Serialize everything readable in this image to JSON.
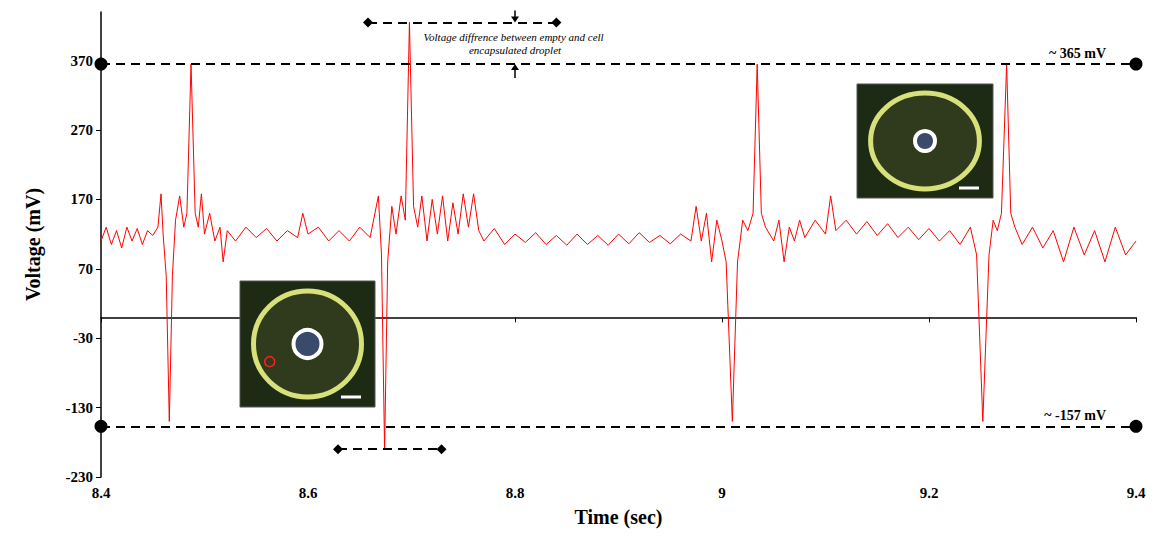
{
  "chart_data": {
    "type": "line",
    "x_label": "Time (sec)",
    "y_label": "Voltage (mV)",
    "color": "#ff0000",
    "grid": false,
    "xlim": [
      8.4,
      9.4
    ],
    "xticks": [
      8.4,
      8.6,
      8.8,
      9,
      9.2,
      9.4
    ],
    "ylim": [
      -230,
      440
    ],
    "yticks": [
      -230,
      -130,
      -30,
      70,
      170,
      270,
      370
    ],
    "x": [
      8.4,
      8.405,
      8.41,
      8.415,
      8.42,
      8.425,
      8.43,
      8.435,
      8.44,
      8.445,
      8.45,
      8.455,
      8.458,
      8.46,
      8.463,
      8.466,
      8.469,
      8.472,
      8.476,
      8.48,
      8.483,
      8.487,
      8.491,
      8.494,
      8.497,
      8.5,
      8.505,
      8.51,
      8.515,
      8.518,
      8.522,
      8.53,
      8.54,
      8.55,
      8.56,
      8.57,
      8.58,
      8.59,
      8.595,
      8.6,
      8.61,
      8.62,
      8.63,
      8.64,
      8.65,
      8.66,
      8.668,
      8.671,
      8.674,
      8.677,
      8.681,
      8.685,
      8.69,
      8.694,
      8.698,
      8.702,
      8.706,
      8.71,
      8.715,
      8.72,
      8.725,
      8.73,
      8.735,
      8.74,
      8.745,
      8.75,
      8.755,
      8.76,
      8.765,
      8.77,
      8.78,
      8.79,
      8.8,
      8.81,
      8.82,
      8.83,
      8.84,
      8.85,
      8.86,
      8.87,
      8.88,
      8.89,
      8.9,
      8.91,
      8.92,
      8.93,
      8.94,
      8.95,
      8.96,
      8.97,
      8.975,
      8.98,
      8.985,
      8.99,
      8.995,
      9.0,
      9.004,
      9.01,
      9.015,
      9.02,
      9.025,
      9.03,
      9.034,
      9.038,
      9.042,
      9.05,
      9.055,
      9.06,
      9.065,
      9.07,
      9.075,
      9.08,
      9.09,
      9.1,
      9.105,
      9.11,
      9.12,
      9.13,
      9.14,
      9.15,
      9.16,
      9.17,
      9.18,
      9.19,
      9.2,
      9.21,
      9.22,
      9.23,
      9.24,
      9.246,
      9.252,
      9.258,
      9.262,
      9.266,
      9.27,
      9.275,
      9.279,
      9.283,
      9.29,
      9.3,
      9.31,
      9.32,
      9.33,
      9.34,
      9.35,
      9.36,
      9.37,
      9.38,
      9.39,
      9.4
    ],
    "values": [
      110,
      130,
      105,
      125,
      100,
      130,
      110,
      128,
      105,
      125,
      118,
      130,
      178,
      120,
      60,
      -150,
      60,
      140,
      175,
      130,
      150,
      365,
      150,
      130,
      178,
      120,
      150,
      110,
      130,
      80,
      125,
      110,
      130,
      115,
      128,
      110,
      125,
      115,
      150,
      120,
      130,
      110,
      125,
      110,
      130,
      115,
      175,
      90,
      -190,
      80,
      160,
      120,
      175,
      140,
      425,
      160,
      130,
      175,
      110,
      170,
      120,
      175,
      110,
      165,
      120,
      178,
      130,
      178,
      125,
      110,
      128,
      105,
      120,
      108,
      122,
      105,
      118,
      104,
      120,
      105,
      118,
      104,
      120,
      106,
      122,
      108,
      118,
      106,
      120,
      110,
      160,
      110,
      150,
      80,
      140,
      110,
      80,
      -150,
      80,
      140,
      125,
      150,
      365,
      150,
      130,
      110,
      140,
      80,
      130,
      110,
      140,
      115,
      140,
      120,
      175,
      125,
      140,
      120,
      138,
      118,
      135,
      115,
      130,
      112,
      128,
      110,
      125,
      105,
      130,
      90,
      -150,
      90,
      140,
      125,
      150,
      365,
      150,
      130,
      105,
      130,
      100,
      125,
      80,
      130,
      90,
      125,
      80,
      130,
      90,
      110
    ],
    "reference_lines": [
      {
        "value": 365,
        "label": "~ 365 mV"
      },
      {
        "value": -157,
        "label": "~ -157 mV"
      }
    ],
    "annotation": {
      "text": "Voltage diffrence between empty and cell encapsulated droplet",
      "x": 8.8
    }
  }
}
